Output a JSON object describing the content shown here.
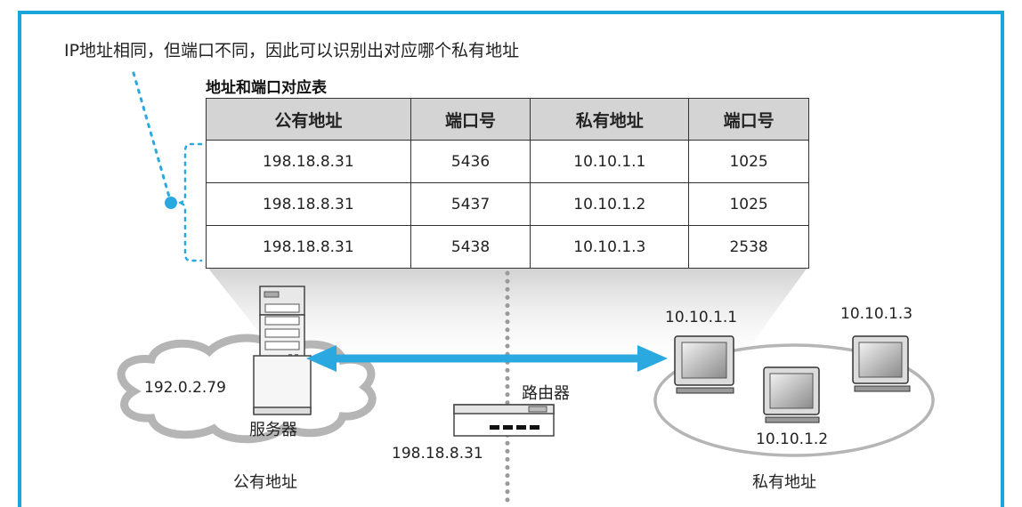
{
  "caption": "IP地址相同，但端口不同，因此可以识别出对应哪个私有地址",
  "table": {
    "title": "地址和端口对应表",
    "headers": [
      "公有地址",
      "端口号",
      "私有地址",
      "端口号"
    ],
    "rows": [
      [
        "198.18.8.31",
        "5436",
        "10.10.1.1",
        "1025"
      ],
      [
        "198.18.8.31",
        "5437",
        "10.10.1.2",
        "1025"
      ],
      [
        "198.18.8.31",
        "5438",
        "10.10.1.3",
        "2538"
      ]
    ]
  },
  "server": {
    "ip": "192.0.2.79",
    "label": "服务器"
  },
  "router": {
    "label": "路由器",
    "ip": "198.18.8.31"
  },
  "clients": [
    {
      "ip": "10.10.1.1"
    },
    {
      "ip": "10.10.1.2"
    },
    {
      "ip": "10.10.1.3"
    }
  ],
  "zones": {
    "public": "公有地址",
    "private": "私有地址"
  },
  "colors": {
    "frame": "#1aa6d9",
    "accent": "#2aa8e0",
    "cloud": "#b5b5b5",
    "header": "#d4d4d4"
  }
}
